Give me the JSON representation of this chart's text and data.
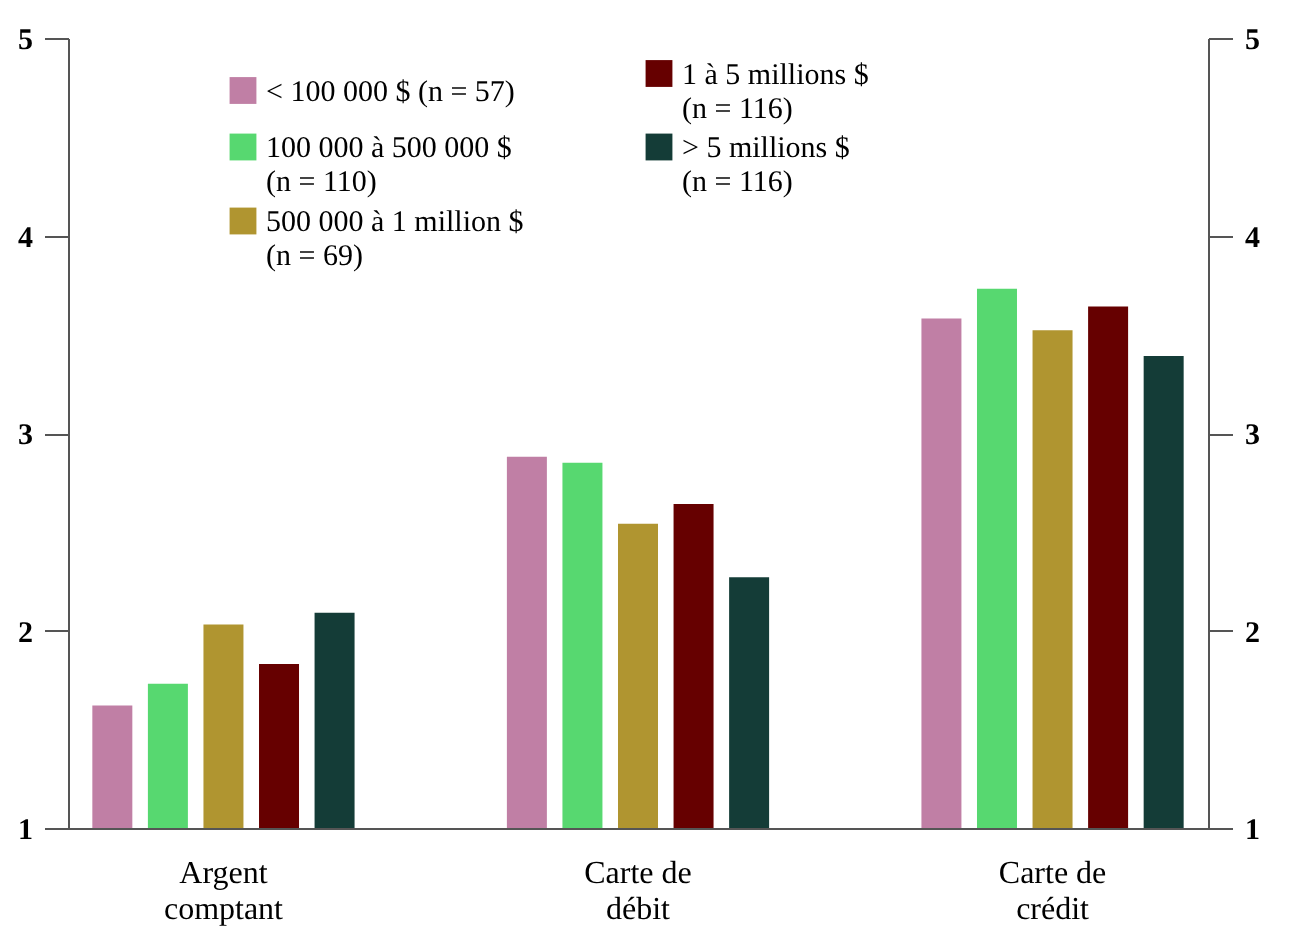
{
  "chart_data": {
    "type": "bar",
    "categories": [
      "Argent\ncomptant",
      "Carte de\ndébit",
      "Carte de\ncrédit"
    ],
    "series": [
      {
        "name": "< 100 000 $ (n = 57)",
        "color": "#c07fa5",
        "values": [
          1.62,
          2.88,
          3.58
        ]
      },
      {
        "name": "100 000 à 500 000 $\n(n = 110)",
        "color": "#57d870",
        "values": [
          1.73,
          2.85,
          3.73
        ]
      },
      {
        "name": "500 000 à 1 million $\n(n = 69)",
        "color": "#b09530",
        "values": [
          2.03,
          2.54,
          3.52
        ]
      },
      {
        "name": "1 à 5 millions $\n(n = 116)",
        "color": "#660000",
        "values": [
          1.83,
          2.64,
          3.64
        ]
      },
      {
        "name": "> 5 millions $\n(n = 116)",
        "color": "#143c37",
        "values": [
          2.09,
          2.27,
          3.39
        ]
      }
    ],
    "ylim": [
      1,
      5
    ],
    "yticks": [
      1,
      2,
      3,
      4,
      5
    ],
    "y2lim": [
      1,
      5
    ],
    "y2ticks": [
      1,
      2,
      3,
      4,
      5
    ],
    "grid": false,
    "legend": "top left"
  }
}
